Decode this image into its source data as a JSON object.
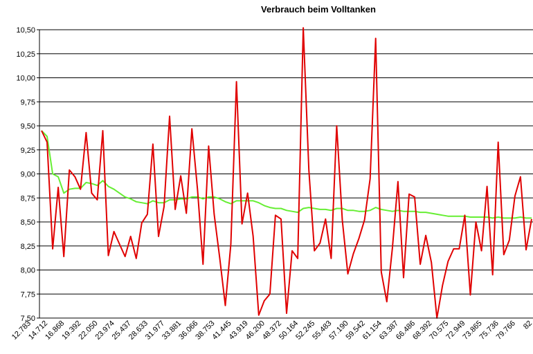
{
  "chart_data": {
    "type": "line",
    "title": "Verbrauch beim Volltanken",
    "xlabel": "",
    "ylabel": "",
    "ylim": [
      7.5,
      10.5
    ],
    "y_ticks": [
      "7,50",
      "7,75",
      "8,00",
      "8,25",
      "8,50",
      "8,75",
      "9,00",
      "9,25",
      "9,50",
      "9,75",
      "10,00",
      "10,25",
      "10,50"
    ],
    "y_tick_values": [
      7.5,
      7.75,
      8.0,
      8.25,
      8.5,
      8.75,
      9.0,
      9.25,
      9.5,
      9.75,
      10.0,
      10.25,
      10.5
    ],
    "x_tick_labels": [
      "12.783",
      "14.712",
      "16.868",
      "19.392",
      "22.050",
      "23.974",
      "25.437",
      "28.633",
      "31.977",
      "33.881",
      "36.066",
      "38.753",
      "41.445",
      "43.919",
      "46.200",
      "48.372",
      "50.164",
      "52.245",
      "55.483",
      "57.190",
      "59.542",
      "61.154",
      "63.387",
      "66.486",
      "68.392",
      "70.575",
      "72.949",
      "73.865",
      "75.736",
      "79.766",
      "82"
    ],
    "grid": true,
    "legend": "none",
    "series": [
      {
        "color": "#e00000",
        "values": [
          9.45,
          9.33,
          8.22,
          8.86,
          8.14,
          9.04,
          8.97,
          8.84,
          9.43,
          8.8,
          8.73,
          9.45,
          8.15,
          8.4,
          8.27,
          8.14,
          8.35,
          8.12,
          8.49,
          8.58,
          9.31,
          8.35,
          8.66,
          9.6,
          8.63,
          8.98,
          8.59,
          9.47,
          8.84,
          8.06,
          9.29,
          8.58,
          8.12,
          7.63,
          8.27,
          9.96,
          8.48,
          8.8,
          8.35,
          7.53,
          7.68,
          7.75,
          8.57,
          8.53,
          7.55,
          8.2,
          8.12,
          10.52,
          9.04,
          8.2,
          8.28,
          8.53,
          8.12,
          9.5,
          8.52,
          7.96,
          8.17,
          8.33,
          8.52,
          8.95,
          10.41,
          7.98,
          7.67,
          8.23,
          8.92,
          7.92,
          8.79,
          8.76,
          8.06,
          8.36,
          8.08,
          7.5,
          7.84,
          8.09,
          8.22,
          8.22,
          8.57,
          7.74,
          8.5,
          8.2,
          8.87,
          7.95,
          9.33,
          8.16,
          8.31,
          8.77,
          8.97,
          8.21,
          8.53
        ]
      },
      {
        "color": "#66ee33",
        "values": [
          9.45,
          9.39,
          9.0,
          8.97,
          8.8,
          8.84,
          8.85,
          8.85,
          8.91,
          8.9,
          8.88,
          8.93,
          8.87,
          8.84,
          8.8,
          8.76,
          8.74,
          8.71,
          8.7,
          8.69,
          8.72,
          8.7,
          8.7,
          8.73,
          8.73,
          8.74,
          8.74,
          8.76,
          8.76,
          8.74,
          8.76,
          8.76,
          8.74,
          8.71,
          8.69,
          8.72,
          8.72,
          8.72,
          8.72,
          8.7,
          8.67,
          8.65,
          8.64,
          8.64,
          8.62,
          8.61,
          8.6,
          8.64,
          8.65,
          8.64,
          8.63,
          8.63,
          8.62,
          8.64,
          8.64,
          8.62,
          8.62,
          8.61,
          8.61,
          8.62,
          8.65,
          8.63,
          8.62,
          8.61,
          8.62,
          8.61,
          8.61,
          8.61,
          8.6,
          8.6,
          8.59,
          8.58,
          8.57,
          8.56,
          8.56,
          8.56,
          8.56,
          8.55,
          8.55,
          8.55,
          8.55,
          8.54,
          8.55,
          8.54,
          8.54,
          8.54,
          8.55,
          8.54,
          8.54
        ]
      }
    ]
  }
}
